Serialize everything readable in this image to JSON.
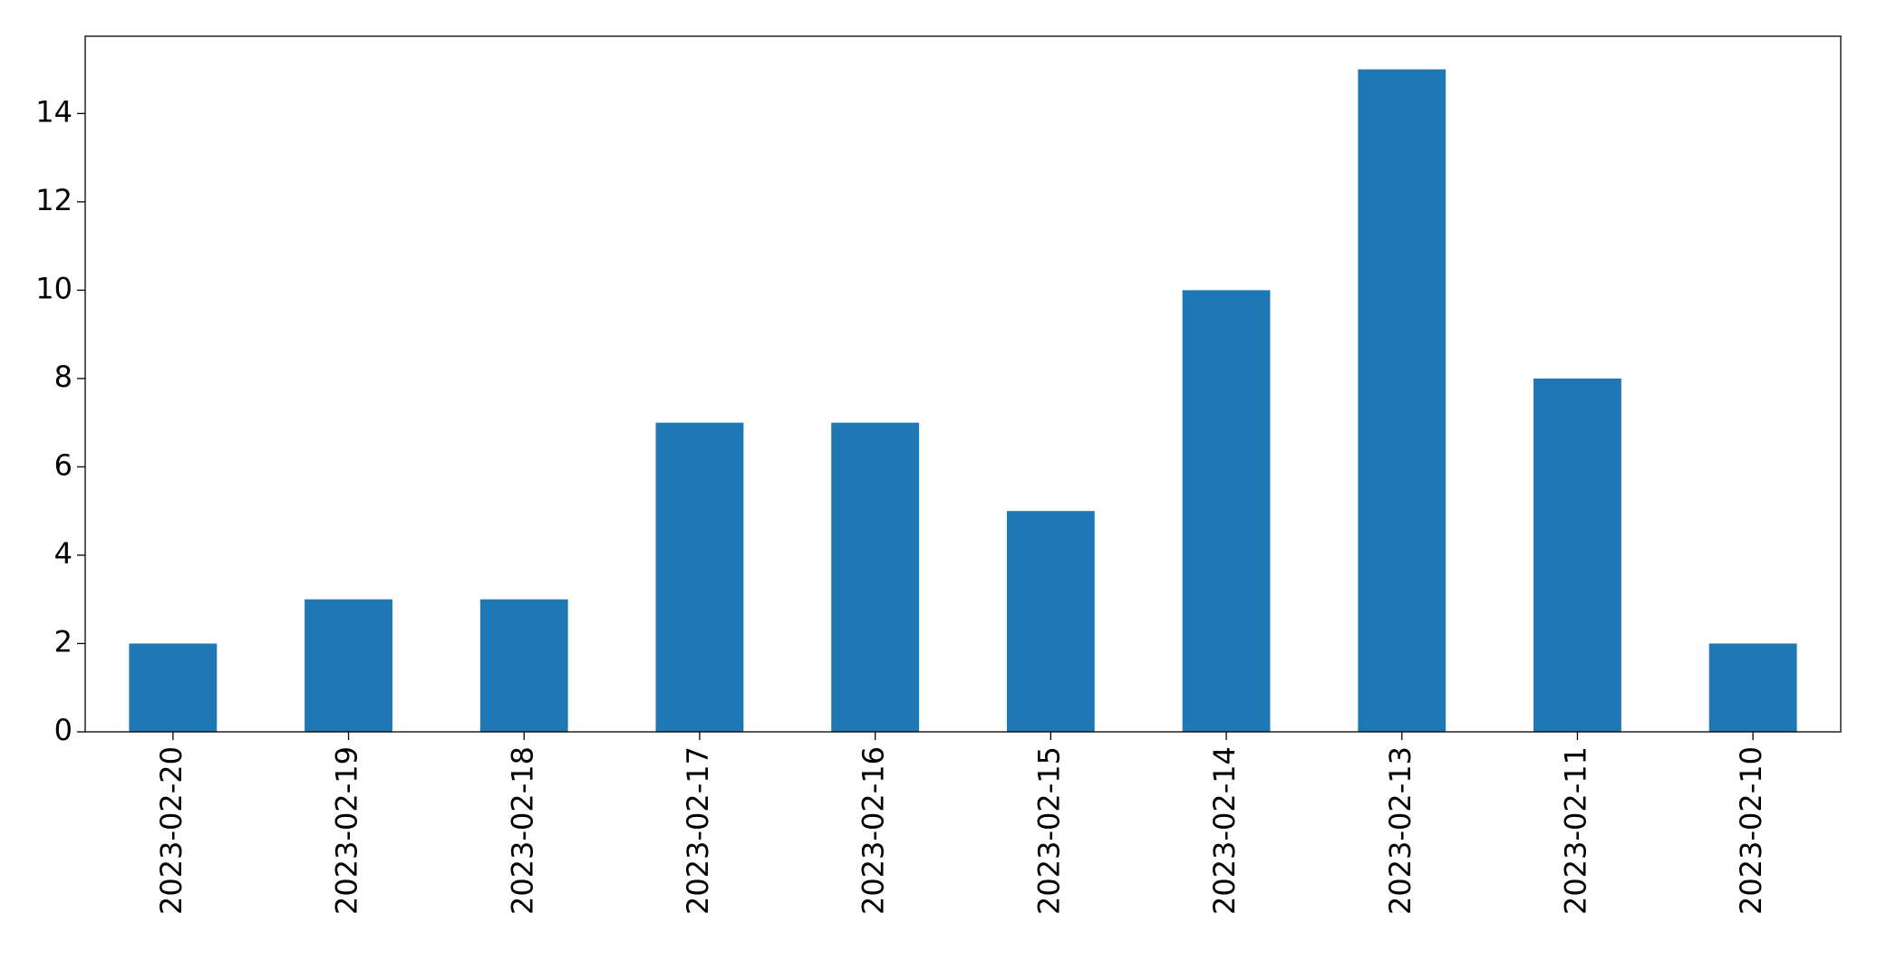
{
  "chart_data": {
    "type": "bar",
    "categories": [
      "2023-02-20",
      "2023-02-19",
      "2023-02-18",
      "2023-02-17",
      "2023-02-16",
      "2023-02-15",
      "2023-02-14",
      "2023-02-13",
      "2023-02-11",
      "2023-02-10"
    ],
    "values": [
      2,
      3,
      3,
      7,
      7,
      5,
      10,
      15,
      8,
      2
    ],
    "color": "#1f77b4",
    "ylim": [
      0,
      15.75
    ],
    "yticks": [
      0,
      2,
      4,
      6,
      8,
      10,
      12,
      14
    ],
    "grid": false
  }
}
